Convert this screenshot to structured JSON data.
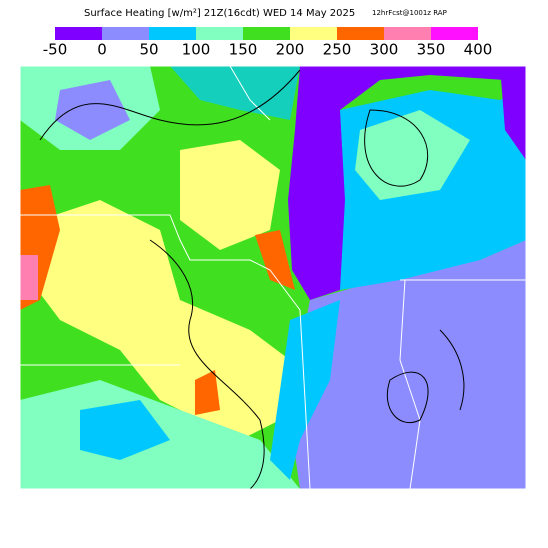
{
  "header": {
    "title": "Surface Heating [w/m²] 21Z(16cdt) WED 14 May 2025",
    "subtitle": "12hrFcst@1001z RAP"
  },
  "legend": {
    "ticks": [
      -50,
      0,
      50,
      100,
      150,
      200,
      250,
      300,
      350,
      400
    ],
    "colors": [
      "#8000ff",
      "#8c8cff",
      "#00c8ff",
      "#80ffc0",
      "#40e020",
      "#ffff80",
      "#ff6600",
      "#ff80b0",
      "#ff10ff"
    ]
  }
}
